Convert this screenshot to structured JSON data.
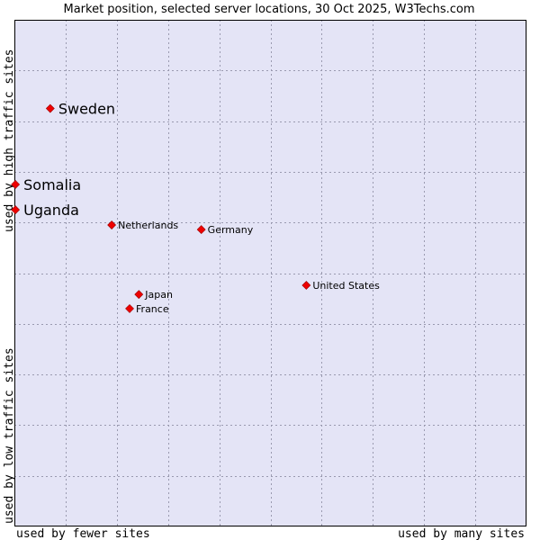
{
  "chart_data": {
    "type": "scatter",
    "title": "Market position, selected server locations, 30 Oct 2025, W3Techs.com",
    "xlabel_left": "used by fewer sites",
    "xlabel_right": "used by many sites",
    "ylabel_bottom": "used by low traffic sites",
    "ylabel_top": "used by high traffic sites",
    "xlim": [
      0,
      100
    ],
    "ylim": [
      0,
      100
    ],
    "grid": true,
    "points": [
      {
        "label": "Sweden",
        "x": 7.0,
        "y": 82.5,
        "emphasis": true
      },
      {
        "label": "Somalia",
        "x": 0.2,
        "y": 67.5,
        "emphasis": true
      },
      {
        "label": "Uganda",
        "x": 0.2,
        "y": 62.5,
        "emphasis": true
      },
      {
        "label": "Netherlands",
        "x": 19.0,
        "y": 59.5,
        "emphasis": false
      },
      {
        "label": "Germany",
        "x": 36.5,
        "y": 58.6,
        "emphasis": false
      },
      {
        "label": "United States",
        "x": 57.0,
        "y": 47.6,
        "emphasis": false
      },
      {
        "label": "Japan",
        "x": 24.3,
        "y": 45.8,
        "emphasis": false
      },
      {
        "label": "France",
        "x": 22.5,
        "y": 43.0,
        "emphasis": false
      }
    ]
  },
  "colors": {
    "plot_bg": "#e4e4f6",
    "grid": "#9a9ab0",
    "marker": "#ee0000",
    "text": "#000000"
  }
}
